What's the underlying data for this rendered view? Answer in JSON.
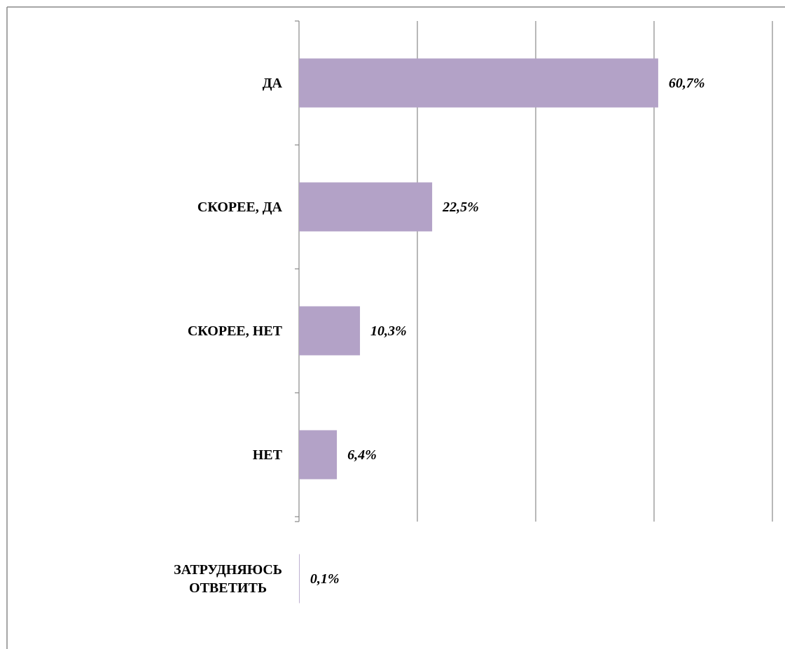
{
  "chart_data": {
    "type": "bar",
    "categories": [
      "ДА",
      "СКОРЕЕ, ДА",
      "СКОРЕЕ, НЕТ",
      "НЕТ",
      "ЗАТРУДНЯЮСЬ ОТВЕТИТЬ"
    ],
    "values": [
      60.7,
      22.5,
      10.3,
      6.4,
      0.1
    ],
    "value_labels": [
      "60,7%",
      "22,5%",
      "10,3%",
      "6,4%",
      "0,1%"
    ],
    "color": "#b3a2c7",
    "xlim": [
      0,
      80
    ],
    "xticks": [
      0,
      20,
      40,
      60,
      80
    ],
    "grid": true
  }
}
